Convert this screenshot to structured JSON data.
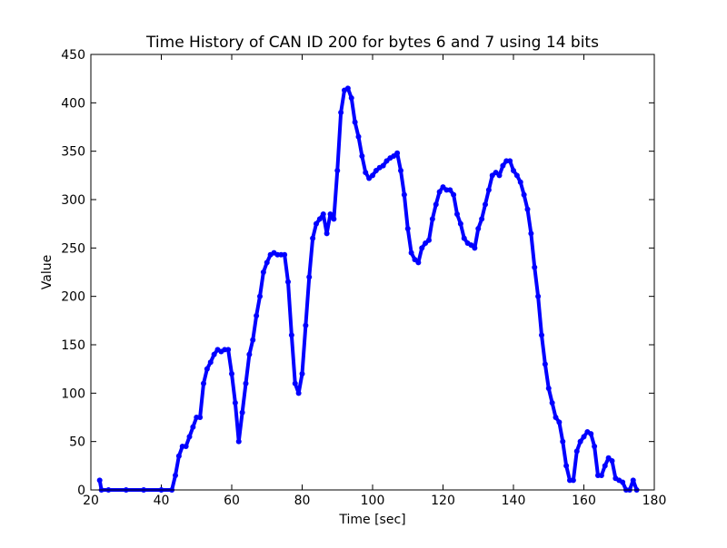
{
  "chart_data": {
    "type": "line",
    "title": "Time History of CAN ID 200 for bytes 6 and 7 using 14 bits",
    "x_label": "Time [sec]",
    "y_label": "Value",
    "x": [
      22.5,
      23,
      25,
      30,
      35,
      40,
      43,
      44,
      45,
      46,
      47,
      48,
      49,
      50,
      51,
      52,
      53,
      54,
      55,
      56,
      57,
      58,
      59,
      60,
      61,
      62,
      63,
      64,
      65,
      66,
      67,
      68,
      69,
      70,
      71,
      72,
      73,
      74,
      75,
      76,
      77,
      78,
      79,
      80,
      81,
      82,
      83,
      84,
      85,
      86,
      87,
      88,
      89,
      90,
      91,
      92,
      93,
      94,
      95,
      96,
      97,
      98,
      99,
      100,
      101,
      102,
      103,
      104,
      105,
      106,
      107,
      108,
      109,
      110,
      111,
      112,
      113,
      114,
      115,
      116,
      117,
      118,
      119,
      120,
      121,
      122,
      123,
      124,
      125,
      126,
      127,
      128,
      129,
      130,
      131,
      132,
      133,
      134,
      135,
      136,
      137,
      138,
      139,
      140,
      141,
      142,
      143,
      144,
      145,
      146,
      147,
      148,
      149,
      150,
      151,
      152,
      153,
      154,
      155,
      156,
      157,
      158,
      159,
      160,
      161,
      162,
      163,
      164,
      165,
      166,
      167,
      168,
      169,
      170,
      171,
      172,
      173,
      174,
      175
    ],
    "series": [
      {
        "name": "CAN ID 200",
        "color": "#0000ff",
        "values": [
          10,
          0,
          0,
          0,
          0,
          0,
          0,
          15,
          35,
          45,
          45,
          55,
          65,
          75,
          75,
          110,
          125,
          132,
          140,
          145,
          143,
          145,
          145,
          120,
          90,
          50,
          80,
          110,
          140,
          155,
          180,
          200,
          225,
          235,
          243,
          245,
          243,
          243,
          243,
          215,
          160,
          110,
          100,
          120,
          170,
          220,
          260,
          275,
          280,
          285,
          265,
          285,
          280,
          330,
          390,
          413,
          415,
          405,
          380,
          365,
          345,
          328,
          322,
          325,
          330,
          333,
          335,
          340,
          343,
          345,
          348,
          330,
          305,
          270,
          245,
          238,
          235,
          250,
          255,
          258,
          280,
          295,
          308,
          313,
          310,
          310,
          305,
          285,
          275,
          260,
          255,
          253,
          250,
          270,
          280,
          295,
          310,
          325,
          328,
          325,
          335,
          340,
          340,
          330,
          325,
          318,
          305,
          290,
          265,
          230,
          200,
          160,
          130,
          105,
          90,
          75,
          70,
          50,
          25,
          10,
          10,
          40,
          50,
          55,
          60,
          58,
          45,
          15,
          15,
          25,
          33,
          30,
          12,
          10,
          8,
          0,
          0,
          10,
          0
        ]
      }
    ],
    "xlim": [
      20,
      180
    ],
    "xticks": [
      20,
      40,
      60,
      80,
      100,
      120,
      140,
      160,
      180
    ],
    "ylim": [
      0,
      450
    ],
    "yticks": [
      0,
      50,
      100,
      150,
      200,
      250,
      300,
      350,
      400,
      450
    ],
    "grid": false
  }
}
